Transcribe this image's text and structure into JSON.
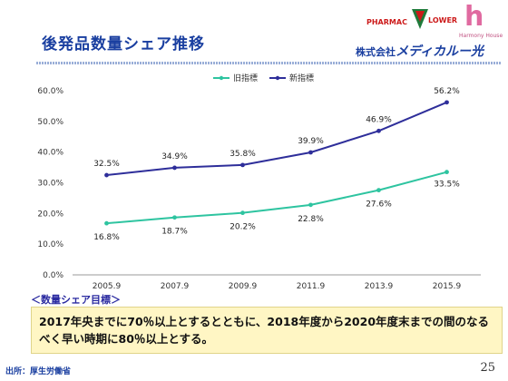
{
  "header": {
    "title": "後発品数量シェア推移",
    "logo_pharmac": "PHARMAC",
    "logo_lower": "LOWER",
    "logo_h": "h",
    "logo_harmony": "Harmony House",
    "company_prefix": "株式会社",
    "company_brand": "メディカルー光"
  },
  "chart_data": {
    "type": "line",
    "categories": [
      "2005.9",
      "2007.9",
      "2009.9",
      "2011.9",
      "2013.9",
      "2015.9"
    ],
    "series": [
      {
        "name": "旧指標",
        "values": [
          16.8,
          18.7,
          20.2,
          22.8,
          27.6,
          33.5
        ],
        "labels": [
          "16.8%",
          "18.7%",
          "20.2%",
          "22.8%",
          "27.6%",
          "33.5%"
        ],
        "color": "#2ec4a0"
      },
      {
        "name": "新指標",
        "values": [
          32.5,
          34.9,
          35.8,
          39.9,
          46.9,
          56.2
        ],
        "labels": [
          "32.5%",
          "34.9%",
          "35.8%",
          "39.9%",
          "46.9%",
          "56.2%"
        ],
        "color": "#2e2e9a"
      }
    ],
    "y_ticks": [
      "0.0%",
      "10.0%",
      "20.0%",
      "30.0%",
      "40.0%",
      "50.0%",
      "60.0%"
    ],
    "ylim": [
      0,
      60
    ],
    "legend_position": "top",
    "grid": false
  },
  "target": {
    "heading": "＜数量シェア目標＞",
    "text": "2017年央までに70％以上とするとともに、2018年度から2020年度末までの間のなるべく早い時期に80％以上とする。"
  },
  "footer": {
    "source": "出所：厚生労働省",
    "page_number": "25"
  }
}
